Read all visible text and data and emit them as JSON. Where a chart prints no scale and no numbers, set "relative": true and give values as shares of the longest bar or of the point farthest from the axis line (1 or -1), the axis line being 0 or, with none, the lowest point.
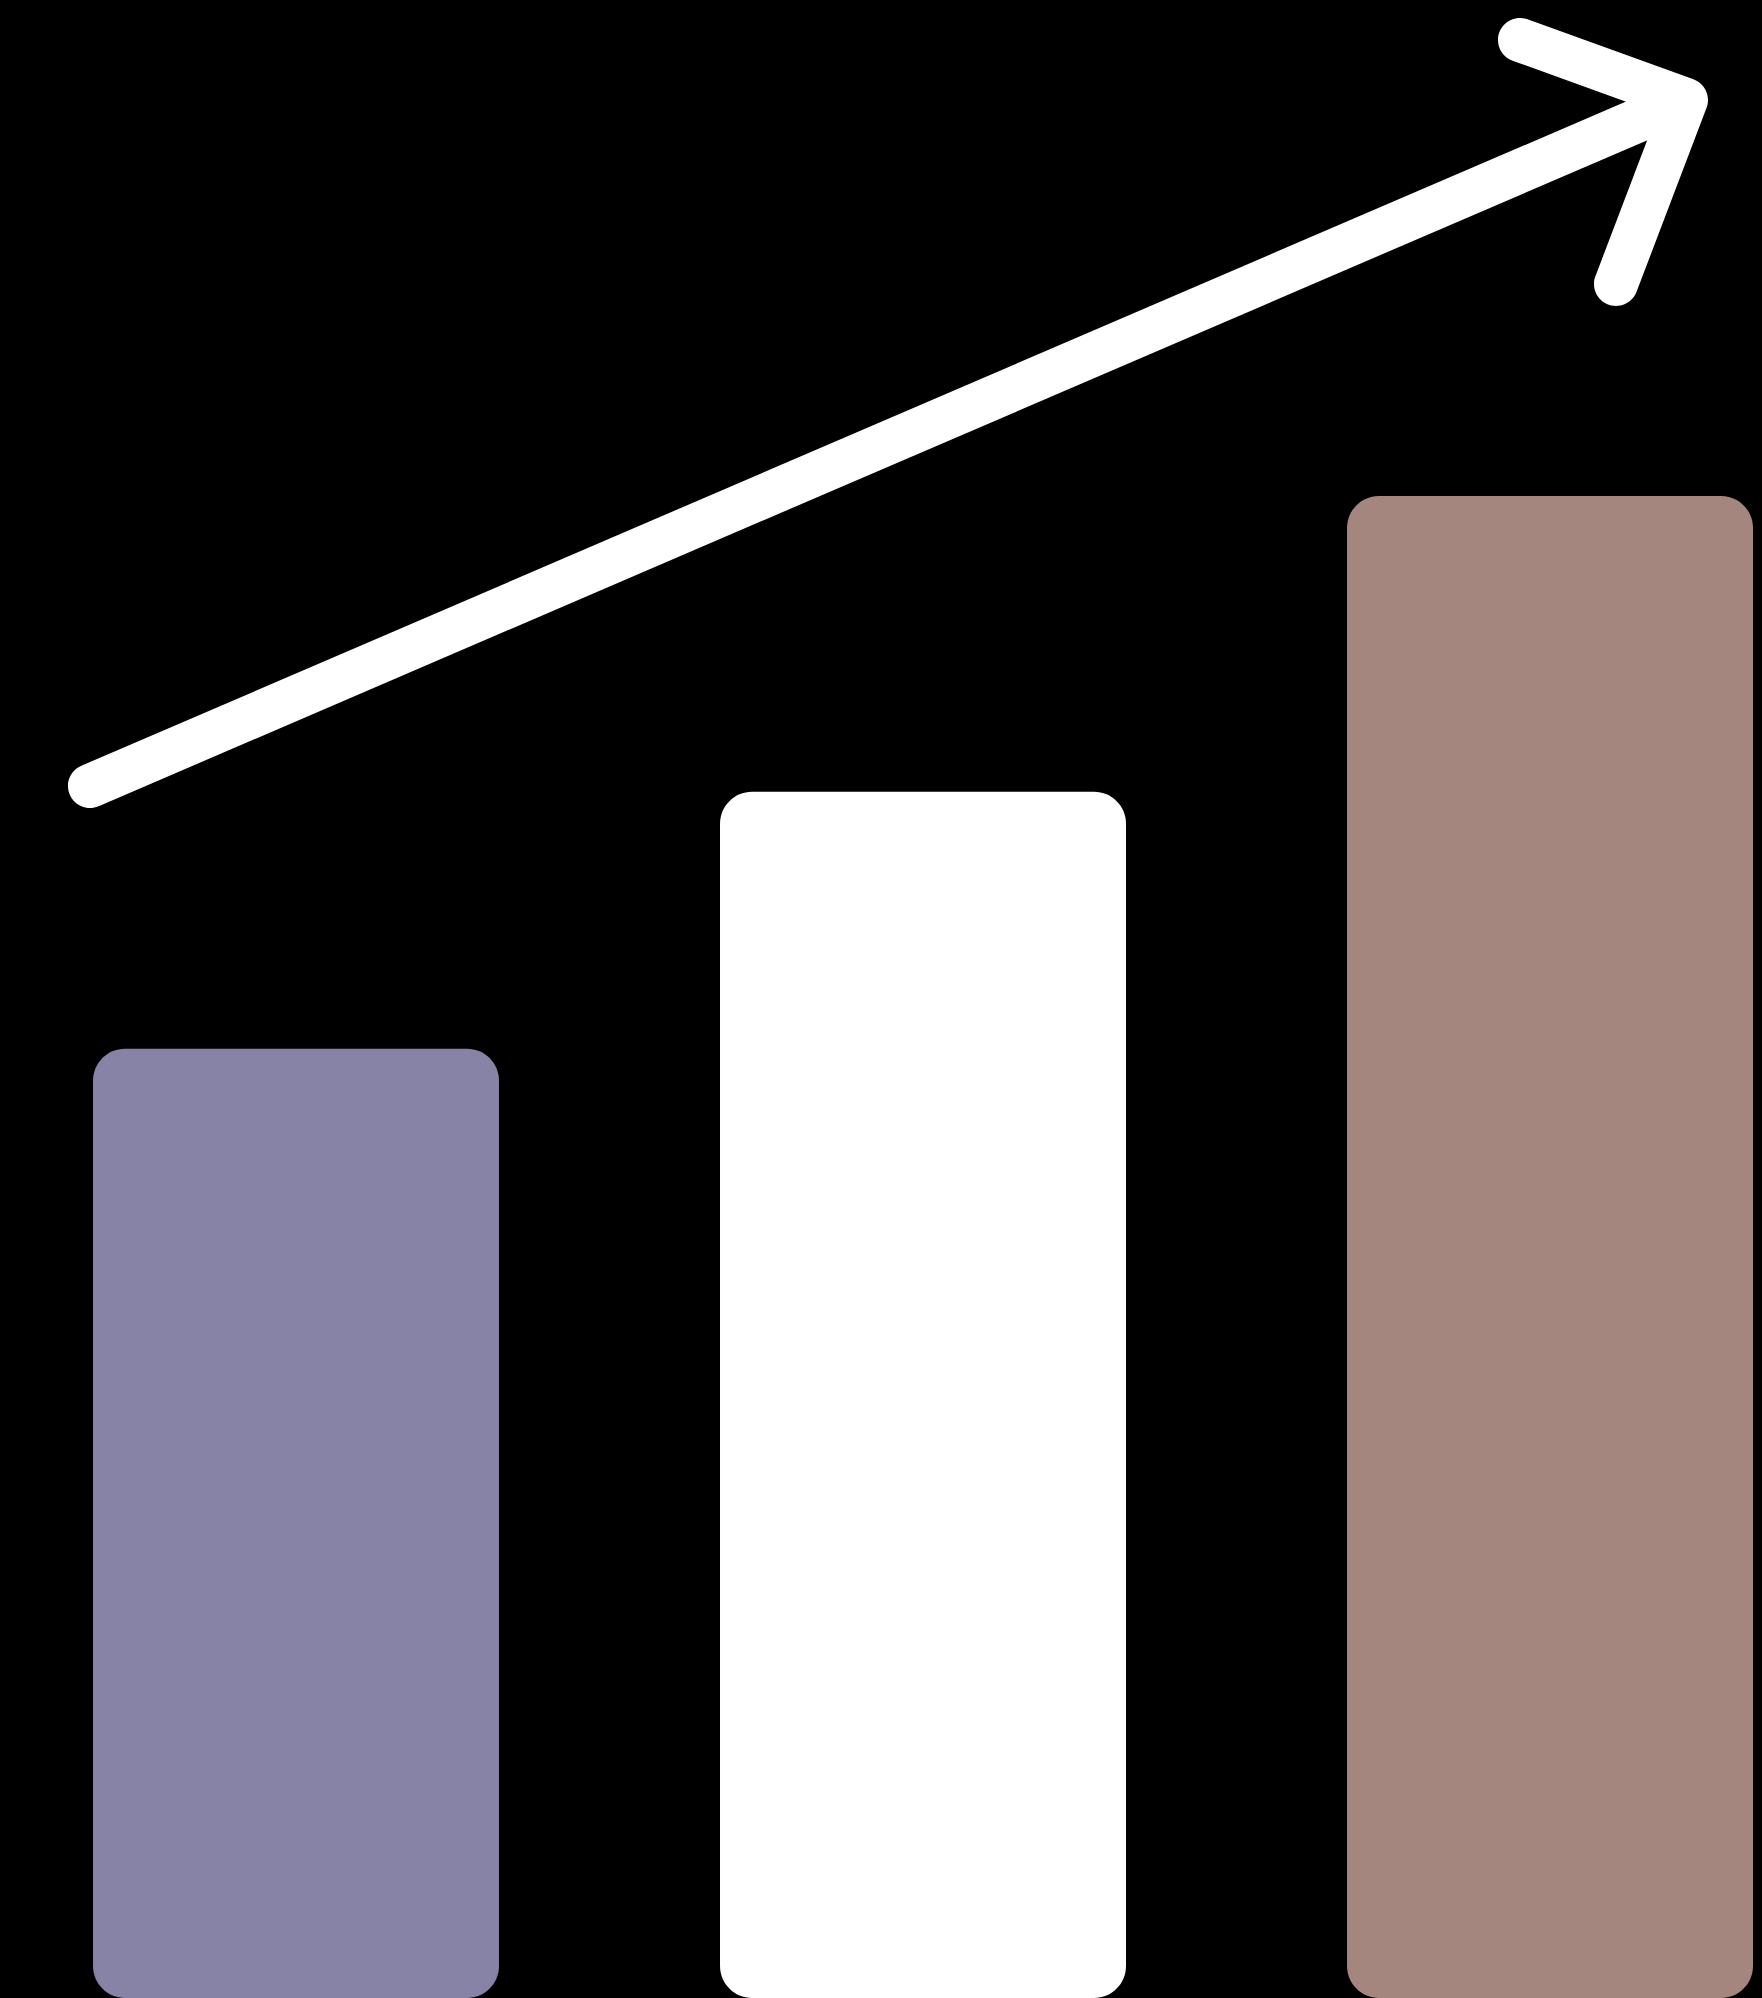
{
  "chart_data": {
    "type": "bar",
    "relative": true,
    "categories": [
      null,
      null,
      null
    ],
    "values": [
      0.632,
      0.803,
      1
    ],
    "colors": [
      "#8783a7",
      "#ffffff",
      "#a4867f"
    ]
  }
}
